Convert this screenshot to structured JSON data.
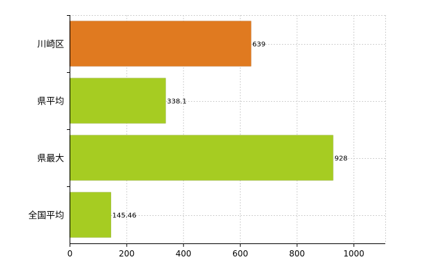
{
  "chart_data": {
    "type": "bar",
    "orientation": "horizontal",
    "categories": [
      "川崎区",
      "県平均",
      "県最大",
      "全国平均"
    ],
    "values": [
      639,
      338.1,
      928,
      145.46
    ],
    "value_labels": [
      "639",
      "338.1",
      "928",
      "145.46"
    ],
    "bar_colors": [
      "#e07a20",
      "#a6cc22",
      "#a6cc22",
      "#a6cc22"
    ],
    "xlim": [
      0,
      1112
    ],
    "xticks": [
      0,
      200,
      400,
      600,
      800,
      1000
    ],
    "xtick_labels": [
      "0",
      "200",
      "400",
      "600",
      "800",
      "1000"
    ],
    "grid": true,
    "title": "",
    "xlabel": "",
    "ylabel": ""
  },
  "colors": {
    "highlight_bar": "#e07a20",
    "standard_bar": "#a6cc22",
    "grid": "#cfcfcf",
    "axis": "#000000"
  }
}
